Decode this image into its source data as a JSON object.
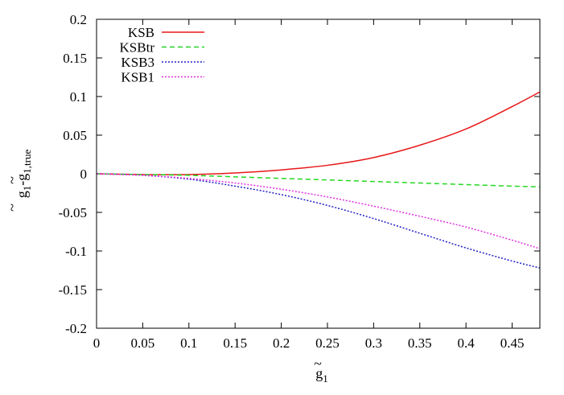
{
  "chart_data": {
    "type": "line",
    "title": "",
    "xlabel": {
      "base": "g",
      "tilde": "~",
      "sub": "1"
    },
    "ylabel": {
      "part1_base": "g",
      "part1_sub": "1",
      "minus": "-",
      "part2_base": "g",
      "part2_sub": "1,true",
      "tilde": "~"
    },
    "xlim": [
      0,
      0.48
    ],
    "ylim": [
      -0.2,
      0.2
    ],
    "x_ticks": [
      0,
      0.05,
      0.1,
      0.15,
      0.2,
      0.25,
      0.3,
      0.35,
      0.4,
      0.45
    ],
    "x_tick_labels": [
      "0",
      "0.05",
      "0.1",
      "0.15",
      "0.2",
      "0.25",
      "0.3",
      "0.35",
      "0.4",
      "0.45"
    ],
    "y_ticks": [
      -0.2,
      -0.15,
      -0.1,
      -0.05,
      0,
      0.05,
      0.1,
      0.15,
      0.2
    ],
    "y_tick_labels": [
      "-0.2",
      "-0.15",
      "-0.1",
      "-0.05",
      "0",
      "0.05",
      "0.1",
      "0.15",
      "0.2"
    ],
    "grid": false,
    "legend_position": "top-left",
    "series": [
      {
        "name": "KSB",
        "color": "#e8181a",
        "dash": "solid",
        "x": [
          0,
          0.05,
          0.1,
          0.15,
          0.2,
          0.25,
          0.3,
          0.35,
          0.4,
          0.45,
          0.48
        ],
        "y": [
          0,
          -0.001,
          -0.001,
          0.001,
          0.005,
          0.011,
          0.021,
          0.037,
          0.058,
          0.087,
          0.106
        ]
      },
      {
        "name": "KSBtr",
        "color": "#22d822",
        "dash": "dashed",
        "x": [
          0,
          0.05,
          0.1,
          0.15,
          0.2,
          0.25,
          0.3,
          0.35,
          0.4,
          0.45,
          0.48
        ],
        "y": [
          0,
          -0.001,
          -0.002,
          -0.004,
          -0.006,
          -0.008,
          -0.01,
          -0.012,
          -0.014,
          -0.016,
          -0.017
        ]
      },
      {
        "name": "KSB3",
        "color": "#2020c8",
        "dash": "dotted",
        "x": [
          0,
          0.05,
          0.1,
          0.15,
          0.2,
          0.25,
          0.3,
          0.35,
          0.4,
          0.45,
          0.48
        ],
        "y": [
          0,
          -0.002,
          -0.007,
          -0.016,
          -0.027,
          -0.041,
          -0.058,
          -0.077,
          -0.096,
          -0.113,
          -0.122
        ]
      },
      {
        "name": "KSB1",
        "color": "#e030e0",
        "dash": "dotted",
        "x": [
          0,
          0.05,
          0.1,
          0.15,
          0.2,
          0.25,
          0.3,
          0.35,
          0.4,
          0.45,
          0.48
        ],
        "y": [
          0,
          -0.002,
          -0.006,
          -0.012,
          -0.02,
          -0.03,
          -0.042,
          -0.055,
          -0.069,
          -0.086,
          -0.097
        ]
      }
    ]
  }
}
